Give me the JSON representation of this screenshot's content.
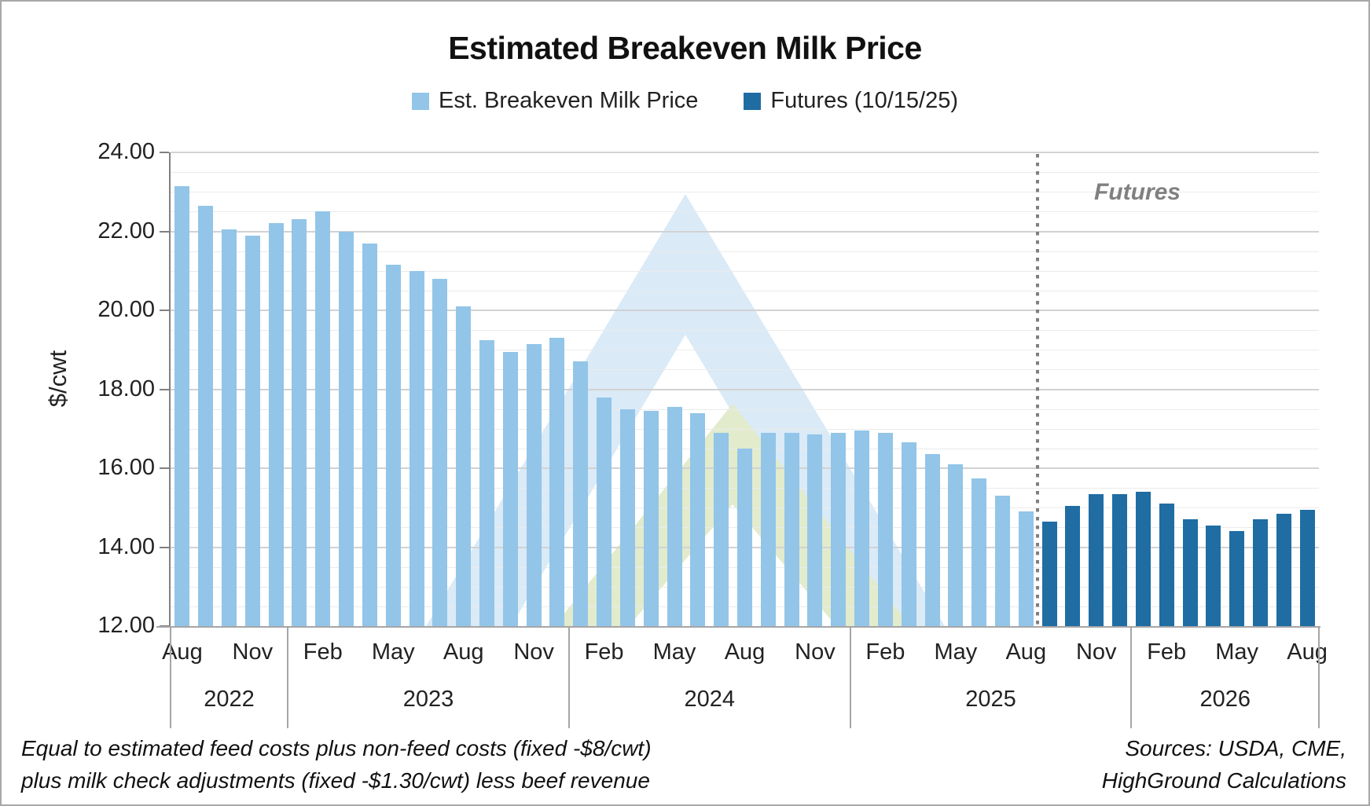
{
  "title": "Estimated Breakeven Milk Price",
  "legend": [
    {
      "label": "Est. Breakeven Milk Price",
      "color": "#92C5E8"
    },
    {
      "label": "Futures (10/15/25)",
      "color": "#1F6DA3"
    }
  ],
  "annotations": {
    "futures_label": "Futures",
    "divider_color": "#7F7F7F"
  },
  "footnotes": {
    "left1": "Equal to estimated feed costs plus non-feed costs (fixed -$8/cwt)",
    "left2": "plus milk check adjustments (fixed -$1.30/cwt) less beef revenue",
    "right1": "Sources: USDA, CME,",
    "right2": "HighGround Calculations"
  },
  "colors": {
    "actual_bar": "#92C5E8",
    "futures_bar": "#1F6DA3",
    "major_grid": "#D2D2D2",
    "minor_grid": "#EBEBEB",
    "axis": "#808080",
    "watermark_blue": "#DAEAF7",
    "watermark_green": "#E2EBCC"
  },
  "chart_data": {
    "type": "bar",
    "title": "Estimated Breakeven Milk Price",
    "xlabel": "",
    "ylabel": "$/cwt",
    "ylim": [
      12,
      24
    ],
    "y_major_step": 2,
    "y_minor_step": 0.5,
    "grid": true,
    "legend_position": "top",
    "x_tick_every": 3,
    "categories": [
      "Aug 2022",
      "Sep 2022",
      "Oct 2022",
      "Nov 2022",
      "Dec 2022",
      "Jan 2023",
      "Feb 2023",
      "Mar 2023",
      "Apr 2023",
      "May 2023",
      "Jun 2023",
      "Jul 2023",
      "Aug 2023",
      "Sep 2023",
      "Oct 2023",
      "Nov 2023",
      "Dec 2023",
      "Jan 2024",
      "Feb 2024",
      "Mar 2024",
      "Apr 2024",
      "May 2024",
      "Jun 2024",
      "Jul 2024",
      "Aug 2024",
      "Sep 2024",
      "Oct 2024",
      "Nov 2024",
      "Dec 2024",
      "Jan 2025",
      "Feb 2025",
      "Mar 2025",
      "Apr 2025",
      "May 2025",
      "Jun 2025",
      "Jul 2025",
      "Aug 2025",
      "Sep 2025",
      "Oct 2025",
      "Nov 2025",
      "Dec 2025",
      "Jan 2026",
      "Feb 2026",
      "Mar 2026",
      "Apr 2026",
      "May 2026",
      "Jun 2026",
      "Jul 2026",
      "Aug 2026"
    ],
    "years": [
      {
        "label": "2022",
        "span": 5
      },
      {
        "label": "2023",
        "span": 12
      },
      {
        "label": "2024",
        "span": 12
      },
      {
        "label": "2025",
        "span": 12
      },
      {
        "label": "2026",
        "span": 8
      }
    ],
    "series": [
      {
        "name": "Est. Breakeven Milk Price",
        "color": "#92C5E8",
        "start_index": 0,
        "values": [
          23.15,
          22.65,
          22.05,
          21.9,
          22.2,
          22.3,
          22.5,
          22.0,
          21.7,
          21.15,
          21.0,
          20.8,
          20.1,
          19.25,
          18.95,
          19.15,
          19.3,
          18.7,
          17.8,
          17.5,
          17.45,
          17.55,
          17.4,
          16.9,
          16.5,
          16.9,
          16.9,
          16.85,
          16.9,
          16.95,
          16.9,
          16.65,
          16.35,
          16.1,
          15.75,
          15.3,
          14.9
        ]
      },
      {
        "name": "Futures (10/15/25)",
        "color": "#1F6DA3",
        "start_index": 37,
        "values": [
          14.65,
          15.05,
          15.35,
          15.35,
          15.4,
          15.1,
          14.7,
          14.55,
          14.4,
          14.7,
          14.85,
          14.95
        ]
      }
    ],
    "divider_after_category": "Aug 2025",
    "annotation": "Futures"
  }
}
